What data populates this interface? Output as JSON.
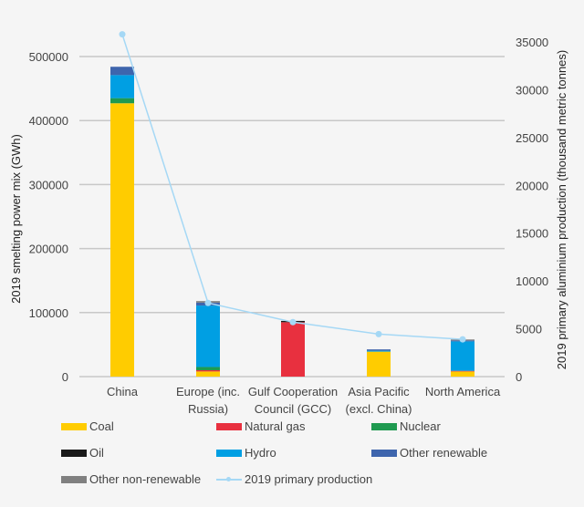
{
  "chart_data": {
    "type": "bar",
    "stacked": true,
    "categories": [
      "China",
      "Europe (inc.\nRussia)",
      "Gulf Cooperation\nCouncil (GCC)",
      "Asia Pacific\n(excl. China)",
      "North America"
    ],
    "ylabel": "2019 smelting power mix (GWh)",
    "y2label": "2019 primary aluminium production (thousand metric tonnes)",
    "ylim": [
      0,
      500000
    ],
    "y2lim": [
      0,
      35000
    ],
    "yticks": [
      0,
      100000,
      200000,
      300000,
      400000,
      500000
    ],
    "y2ticks": [
      0,
      5000,
      10000,
      15000,
      20000,
      25000,
      30000,
      35000
    ],
    "grid": true,
    "legend_position": "bottom",
    "series": [
      {
        "name": "Coal",
        "color": "#ffcc00",
        "values": [
          427000,
          8000,
          0,
          39000,
          8000
        ]
      },
      {
        "name": "Natural gas",
        "color": "#e8303f",
        "values": [
          0,
          2000,
          85000,
          0,
          1000
        ]
      },
      {
        "name": "Nuclear",
        "color": "#1f9a50",
        "values": [
          8000,
          5000,
          0,
          0,
          0
        ]
      },
      {
        "name": "Oil",
        "color": "#1a1a1a",
        "values": [
          0,
          0,
          2000,
          0,
          0
        ]
      },
      {
        "name": "Hydro",
        "color": "#009fe3",
        "values": [
          36000,
          96000,
          0,
          1500,
          46000
        ]
      },
      {
        "name": "Other renewable",
        "color": "#3e65ad",
        "values": [
          13000,
          4500,
          0,
          2000,
          1500
        ]
      },
      {
        "name": "Other non-renewable",
        "color": "#808080",
        "values": [
          0,
          2500,
          0,
          0,
          1500
        ]
      }
    ],
    "line_series": {
      "name": "2019 primary production",
      "color": "#a5d8f5",
      "axis": "right",
      "values": [
        35800,
        7700,
        5700,
        4450,
        3900
      ]
    }
  }
}
